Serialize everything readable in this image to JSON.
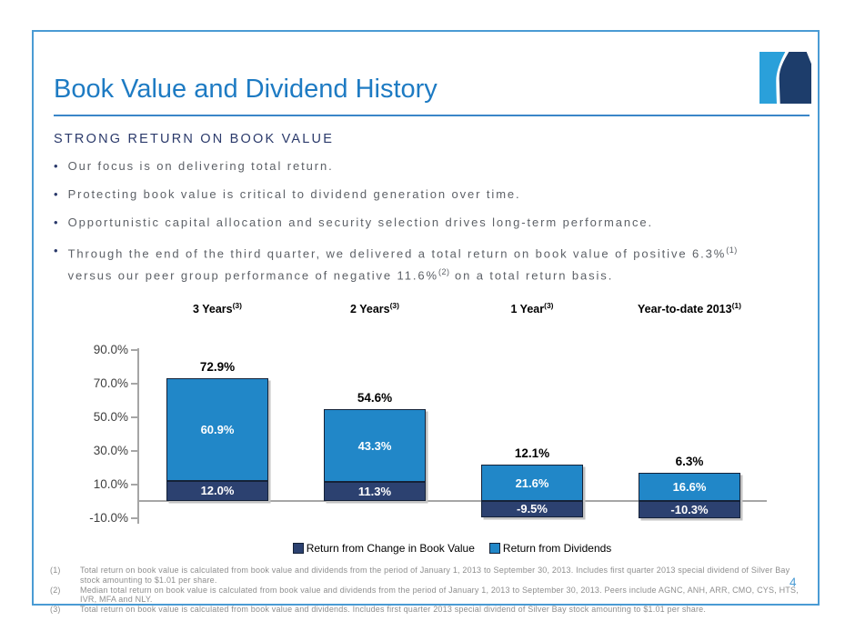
{
  "slide": {
    "title": "Book Value and Dividend History",
    "subtitle": "STRONG RETURN ON BOOK VALUE",
    "page_number": "4",
    "bullets": [
      {
        "segments": [
          {
            "text": "Our focus is on delivering total return."
          }
        ]
      },
      {
        "segments": [
          {
            "text": "Protecting book value is critical to dividend generation over time."
          }
        ]
      },
      {
        "segments": [
          {
            "text": "Opportunistic capital allocation and security selection drives long-term performance."
          }
        ]
      },
      {
        "segments": [
          {
            "text": "Through the end of the third quarter, we delivered a total return on book value of positive 6.3%"
          },
          {
            "text": "(1)",
            "sup": true
          },
          {
            "text": " versus our peer group performance of negative 11.6%"
          },
          {
            "text": "(2)",
            "sup": true
          },
          {
            "text": " on a total return basis."
          }
        ]
      }
    ]
  },
  "chart_data": {
    "type": "bar",
    "stacked": true,
    "grid": false,
    "legend_position": "bottom",
    "categories": [
      {
        "label": "3 Years",
        "sup": "(3)"
      },
      {
        "label": "2 Years",
        "sup": "(3)"
      },
      {
        "label": "1 Year",
        "sup": "(3)"
      },
      {
        "label": "Year-to-date 2013",
        "sup": "(1)"
      }
    ],
    "series": [
      {
        "name": "Return from Change in Book Value",
        "color": "#2c4170",
        "values": [
          12.0,
          11.3,
          -9.5,
          -10.3
        ]
      },
      {
        "name": "Return from Dividends",
        "color": "#2187c8",
        "values": [
          60.9,
          43.3,
          21.6,
          16.6
        ]
      }
    ],
    "segment_labels": [
      [
        "12.0%",
        "60.9%"
      ],
      [
        "11.3%",
        "43.3%"
      ],
      [
        "-9.5%",
        "21.6%"
      ],
      [
        "-10.3%",
        "16.6%"
      ]
    ],
    "totals": [
      72.9,
      54.6,
      12.1,
      6.3
    ],
    "total_labels": [
      "72.9%",
      "54.6%",
      "12.1%",
      "6.3%"
    ],
    "ylabel": "",
    "xlabel": "",
    "ylim": [
      -10,
      90
    ],
    "y_ticks": [
      {
        "value": 90,
        "label": "90.0%"
      },
      {
        "value": 70,
        "label": "70.0%"
      },
      {
        "value": 50,
        "label": "50.0%"
      },
      {
        "value": 30,
        "label": "30.0%"
      },
      {
        "value": 10,
        "label": "10.0%"
      },
      {
        "value": -10,
        "label": "-10.0%"
      }
    ]
  },
  "footnotes": [
    {
      "marker": "(1)",
      "text": "Total return on book value is calculated from book value and dividends from the period of January 1, 2013 to September 30, 2013. Includes first quarter 2013 special dividend of Silver Bay stock amounting to $1.01 per share."
    },
    {
      "marker": "(2)",
      "text": "Median total return on book value is calculated from book value and dividends from the period of January 1, 2013 to September 30, 2013. Peers include AGNC, ANH, ARR, CMO, CYS, HTS, IVR, MFA and NLY."
    },
    {
      "marker": "(3)",
      "text": "Total return on book value is calculated from book value and dividends. Includes first quarter 2013 special dividend of Silver Bay stock amounting to $1.01 per share."
    }
  ],
  "colors": {
    "title_blue": "#1e7bc3",
    "navy": "#2b3a6b",
    "border_blue": "#4a9bd4",
    "bar_navy": "#2c4170",
    "bar_blue": "#2187c8",
    "bar_outline": "#152238",
    "axis_gray": "#a6a6a6",
    "bullet_text_gray": "#5d6167",
    "footnote_gray": "#8e8e8e",
    "logo_light_blue": "#2aa0da",
    "logo_dark_navy": "#1d3d6b"
  }
}
